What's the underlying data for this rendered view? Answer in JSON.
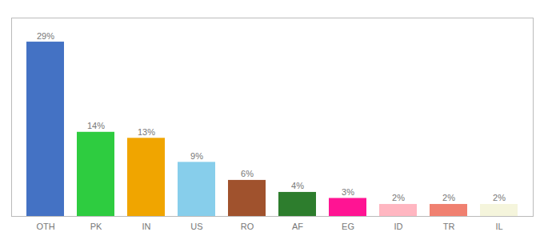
{
  "chart_data": {
    "type": "bar",
    "categories": [
      "OTH",
      "PK",
      "IN",
      "US",
      "RO",
      "AF",
      "EG",
      "ID",
      "TR",
      "IL"
    ],
    "values": [
      29,
      14,
      13,
      9,
      6,
      4,
      3,
      2,
      2,
      2
    ],
    "value_labels": [
      "29%",
      "14%",
      "13%",
      "9%",
      "6%",
      "4%",
      "3%",
      "2%",
      "2%",
      "2%"
    ],
    "colors": [
      "#4472c4",
      "#2ecc40",
      "#f0a500",
      "#87ceeb",
      "#a0522d",
      "#2d7d2d",
      "#ff1493",
      "#ffb6c1",
      "#f08070",
      "#f5f5dc"
    ],
    "ylim": [
      0,
      33
    ],
    "data_labels": true,
    "tick_labels": "x",
    "grid": false
  }
}
